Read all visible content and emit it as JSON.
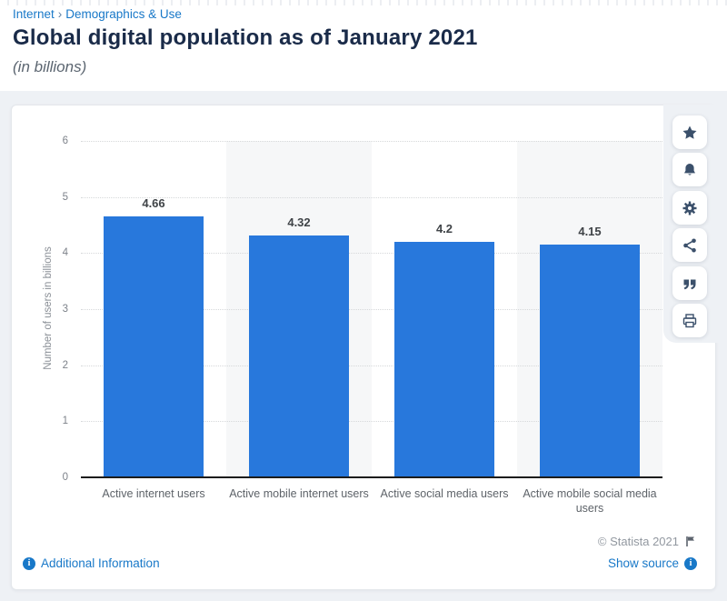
{
  "breadcrumb": {
    "items": [
      "Internet",
      "Demographics & Use"
    ],
    "separator": "›"
  },
  "header": {
    "title": "Global digital population as of January 2021",
    "subtitle": "(in billions)"
  },
  "chart_data": {
    "type": "bar",
    "categories": [
      "Active internet users",
      "Active mobile internet users",
      "Active social media users",
      "Active mobile social media users"
    ],
    "category_lines": [
      [
        "Active internet users"
      ],
      [
        "Active mobile internet users"
      ],
      [
        "Active social media users"
      ],
      [
        "Active mobile social media",
        "users"
      ]
    ],
    "values": [
      4.66,
      4.32,
      4.2,
      4.15
    ],
    "value_labels": [
      "4.66",
      "4.32",
      "4.2",
      "4.15"
    ],
    "title": "Global digital population as of January 2021",
    "xlabel": "",
    "ylabel": "Number of users in billions",
    "ylim": [
      0,
      6
    ],
    "yticks": [
      0,
      1,
      2,
      3,
      4,
      5,
      6
    ],
    "grid": "horizontal-dotted",
    "legend": "none",
    "bar_color": "#2878dc",
    "alt_column_background": "#f6f7f8",
    "gridline_color": "#d6d8da"
  },
  "toolbar": {
    "buttons": [
      {
        "name": "favorite",
        "icon": "star-icon"
      },
      {
        "name": "alerts",
        "icon": "bell-icon"
      },
      {
        "name": "settings",
        "icon": "gear-icon"
      },
      {
        "name": "share",
        "icon": "share-icon"
      },
      {
        "name": "cite",
        "icon": "quote-icon"
      },
      {
        "name": "print",
        "icon": "print-icon"
      }
    ]
  },
  "footer": {
    "copyright": "© Statista 2021",
    "additional_info_label": "Additional Information",
    "show_source_label": "Show source"
  },
  "colors": {
    "link_blue": "#1878c8",
    "title_navy": "#1a2b49",
    "icon_slate": "#3b506b",
    "page_background": "#eef1f5"
  }
}
